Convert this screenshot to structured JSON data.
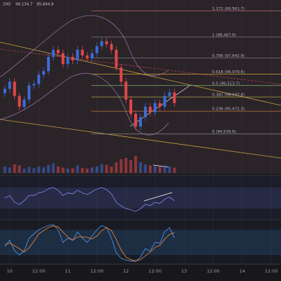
{
  "chart_data": {
    "type": "candlestick",
    "legend": [
      "20D",
      "96,134.7",
      "95,844.8"
    ],
    "x": [
      -2,
      0,
      2,
      4,
      6,
      8,
      10,
      12,
      14,
      16,
      18,
      20,
      22,
      24,
      26,
      28,
      30,
      32,
      34,
      36,
      38,
      40,
      42,
      44,
      46,
      48,
      50,
      52,
      54,
      56,
      58,
      60,
      62,
      64,
      66,
      68
    ],
    "open": [
      96200,
      96380,
      96670,
      96090,
      95650,
      95940,
      96520,
      96580,
      96960,
      97100,
      97680,
      97970,
      97830,
      97390,
      97680,
      97540,
      97970,
      97740,
      97620,
      97830,
      98120,
      98320,
      98200,
      97970,
      97250,
      96670,
      95940,
      95360,
      94840,
      95220,
      95650,
      95420,
      95800,
      95650,
      96090,
      96230
    ],
    "high": [
      96530,
      96820,
      96820,
      96240,
      96090,
      96670,
      96730,
      97110,
      97250,
      97830,
      98120,
      98120,
      97980,
      97830,
      97830,
      98120,
      98120,
      97890,
      97980,
      98270,
      98470,
      98470,
      98350,
      98120,
      97400,
      96820,
      96090,
      95510,
      95370,
      95800,
      95800,
      95950,
      95950,
      96240,
      96380,
      96380
    ],
    "low": [
      96050,
      96230,
      95940,
      95500,
      95500,
      95790,
      96370,
      96430,
      96810,
      96950,
      97530,
      97680,
      97240,
      97240,
      97390,
      97390,
      97590,
      97470,
      97470,
      97680,
      97970,
      98050,
      97820,
      97100,
      96520,
      95790,
      95210,
      94690,
      94690,
      95070,
      95270,
      95270,
      95500,
      95500,
      95940,
      95650
    ],
    "close": [
      96380,
      96670,
      96090,
      95650,
      95940,
      96520,
      96580,
      96960,
      97100,
      97680,
      97970,
      97830,
      97390,
      97680,
      97540,
      97970,
      97740,
      97620,
      97830,
      98120,
      98320,
      98200,
      97970,
      97250,
      96670,
      95940,
      95360,
      94840,
      95220,
      95650,
      95420,
      95800,
      95650,
      96090,
      96230,
      95800
    ],
    "volume": [
      300,
      250,
      400,
      350,
      200,
      280,
      220,
      300,
      260,
      380,
      450,
      300,
      250,
      200,
      220,
      350,
      240,
      200,
      260,
      300,
      420,
      380,
      300,
      500,
      650,
      700,
      600,
      800,
      500,
      400,
      350,
      300,
      280,
      350,
      300,
      250
    ],
    "up_color": "#3d6bd6",
    "down_color": "#e0474c",
    "ylim": [
      92900,
      100000
    ],
    "volume_lim": [
      0,
      1500
    ],
    "xlim": [
      -4,
      112
    ],
    "xticks": [
      {
        "value": 0,
        "label": "10"
      },
      {
        "value": 12,
        "label": "12:00"
      },
      {
        "value": 24,
        "label": "11"
      },
      {
        "value": 36,
        "label": "12:00"
      },
      {
        "value": 48,
        "label": "12"
      },
      {
        "value": 60,
        "label": "12:00"
      },
      {
        "value": 72,
        "label": "13"
      },
      {
        "value": 84,
        "label": "12:00"
      },
      {
        "value": 96,
        "label": "14"
      },
      {
        "value": 108,
        "label": "12:00"
      }
    ],
    "fib_levels": [
      {
        "value": 99561.7,
        "label": "1.272 (99,561.7)",
        "color": "#c97a8a"
      },
      {
        "value": 98487.8,
        "label": "1 (98,487.8)",
        "color": "#8a8a92"
      },
      {
        "value": 97642.9,
        "label": "0.786 (97,642.9)",
        "color": "#8a8a92"
      },
      {
        "value": 96979.6,
        "label": "0.618 (96,979.6)",
        "color": "#d9a53a"
      },
      {
        "value": 96513.7,
        "label": "0.5 (96,513.7)",
        "color": "#7fb36b"
      },
      {
        "value": 96047.8,
        "label": "0.382 (96,047.8)",
        "color": "#c9c04a"
      },
      {
        "value": 95471.3,
        "label": "0.236 (95,471.3)",
        "color": "#d9853a"
      },
      {
        "value": 94539.6,
        "label": "0 (94,539.6)",
        "color": "#8a8a92"
      }
    ],
    "rsi": {
      "values": [
        50,
        55,
        42,
        38,
        45,
        55,
        55,
        60,
        62,
        68,
        70,
        65,
        55,
        60,
        58,
        65,
        60,
        57,
        62,
        67,
        70,
        66,
        58,
        42,
        35,
        30,
        28,
        25,
        30,
        38,
        36,
        42,
        40,
        48,
        52,
        45
      ],
      "ylim": [
        10,
        90
      ],
      "band": [
        30,
        70
      ],
      "color": "#7b7fe0"
    },
    "stoch": {
      "k": [
        40,
        55,
        30,
        20,
        30,
        60,
        70,
        80,
        85,
        90,
        92,
        80,
        50,
        60,
        55,
        75,
        60,
        50,
        65,
        80,
        90,
        85,
        60,
        25,
        12,
        8,
        6,
        5,
        15,
        35,
        30,
        50,
        48,
        75,
        85,
        60
      ],
      "d": [
        45,
        48,
        42,
        35,
        27,
        37,
        53,
        70,
        78,
        85,
        89,
        87,
        74,
        63,
        55,
        63,
        63,
        62,
        58,
        65,
        78,
        85,
        78,
        57,
        32,
        15,
        9,
        6,
        9,
        18,
        27,
        38,
        43,
        58,
        69,
        73
      ],
      "ylim": [
        0,
        100
      ],
      "band": [
        20,
        80
      ],
      "k_color": "#4f8fe0",
      "d_color": "#e0803a"
    }
  }
}
